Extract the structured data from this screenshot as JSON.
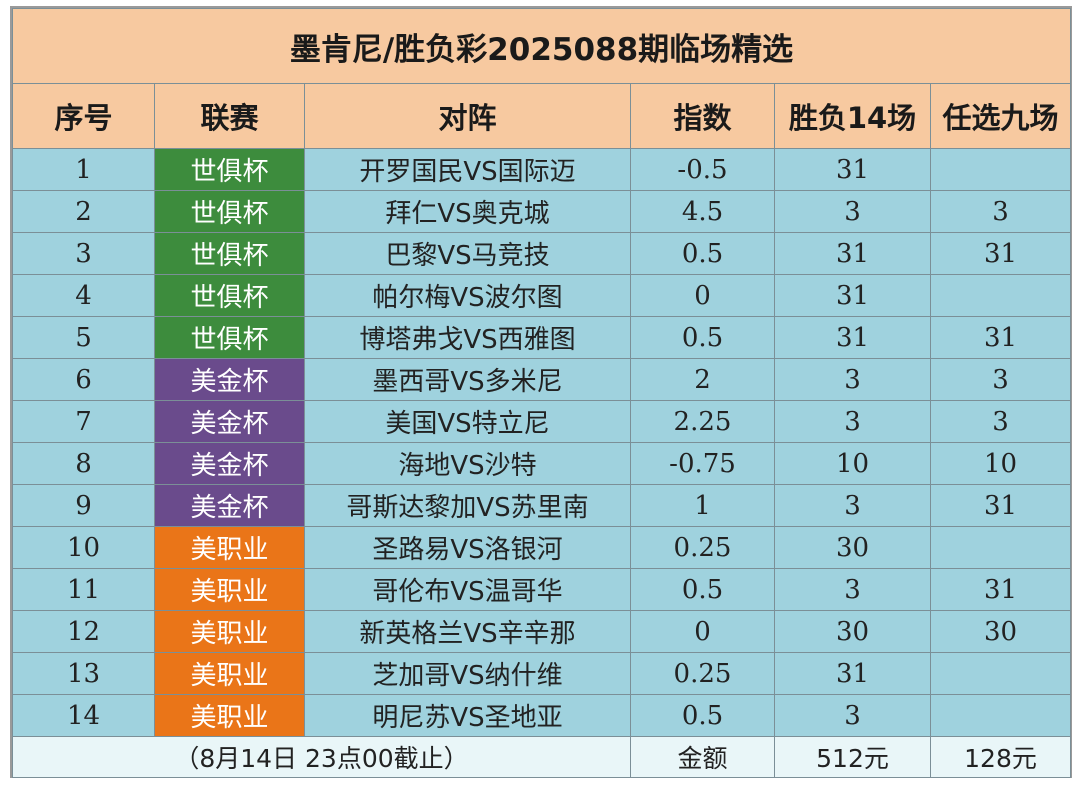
{
  "title": "墨肯尼/胜负彩2025088期临场精选",
  "headers": {
    "index": "序号",
    "league": "联赛",
    "match": "对阵",
    "handicap": "指数",
    "pick14": "胜负14场",
    "pick9": "任选九场"
  },
  "league_colors": {
    "世俱杯": "#3d8c3d",
    "美金杯": "#6a4b8c",
    "美职业": "#ea7518"
  },
  "rows": [
    {
      "index": "1",
      "league": "世俱杯",
      "match": "开罗国民VS国际迈",
      "handicap": "-0.5",
      "pick14": "31",
      "pick9": ""
    },
    {
      "index": "2",
      "league": "世俱杯",
      "match": "拜仁VS奥克城",
      "handicap": "4.5",
      "pick14": "3",
      "pick9": "3"
    },
    {
      "index": "3",
      "league": "世俱杯",
      "match": "巴黎VS马竞技",
      "handicap": "0.5",
      "pick14": "31",
      "pick9": "31"
    },
    {
      "index": "4",
      "league": "世俱杯",
      "match": "帕尔梅VS波尔图",
      "handicap": "0",
      "pick14": "31",
      "pick9": ""
    },
    {
      "index": "5",
      "league": "世俱杯",
      "match": "博塔弗戈VS西雅图",
      "handicap": "0.5",
      "pick14": "31",
      "pick9": "31"
    },
    {
      "index": "6",
      "league": "美金杯",
      "match": "墨西哥VS多米尼",
      "handicap": "2",
      "pick14": "3",
      "pick9": "3"
    },
    {
      "index": "7",
      "league": "美金杯",
      "match": "美国VS特立尼",
      "handicap": "2.25",
      "pick14": "3",
      "pick9": "3"
    },
    {
      "index": "8",
      "league": "美金杯",
      "match": "海地VS沙特",
      "handicap": "-0.75",
      "pick14": "10",
      "pick9": "10"
    },
    {
      "index": "9",
      "league": "美金杯",
      "match": "哥斯达黎加VS苏里南",
      "handicap": "1",
      "pick14": "3",
      "pick9": "31"
    },
    {
      "index": "10",
      "league": "美职业",
      "match": "圣路易VS洛银河",
      "handicap": "0.25",
      "pick14": "30",
      "pick9": ""
    },
    {
      "index": "11",
      "league": "美职业",
      "match": "哥伦布VS温哥华",
      "handicap": "0.5",
      "pick14": "3",
      "pick9": "31"
    },
    {
      "index": "12",
      "league": "美职业",
      "match": "新英格兰VS辛辛那",
      "handicap": "0",
      "pick14": "30",
      "pick9": "30"
    },
    {
      "index": "13",
      "league": "美职业",
      "match": "芝加哥VS纳什维",
      "handicap": "0.25",
      "pick14": "31",
      "pick9": ""
    },
    {
      "index": "14",
      "league": "美职业",
      "match": "明尼苏VS圣地亚",
      "handicap": "0.5",
      "pick14": "3",
      "pick9": ""
    }
  ],
  "footer": {
    "deadline": "（8月14日 23点00截止）",
    "amount_label": "金额",
    "amount14": "512元",
    "amount9": "128元"
  }
}
